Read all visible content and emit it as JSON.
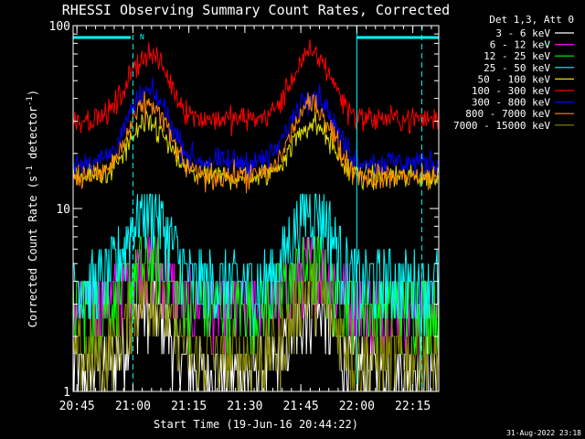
{
  "chart_data": {
    "type": "line",
    "title": "RHESSI Observing Summary Count Rates, Corrected",
    "xlabel": "Start Time (19-Jun-16 20:44:22)",
    "ylabel_main": "Corrected Count Rate (s",
    "ylabel_sup1": "-1",
    "ylabel_mid": " detector",
    "ylabel_sup2": "-1",
    "ylabel_end": ")",
    "yscale": "log",
    "ylim": [
      1,
      100
    ],
    "y_ticks": [
      {
        "value": 1,
        "label": "1"
      },
      {
        "value": 10,
        "label": "10"
      },
      {
        "value": 100,
        "label": "100"
      }
    ],
    "xlim_minutes": [
      20.733,
      22.366
    ],
    "x_ticks": [
      {
        "value": 20.75,
        "label": "20:45"
      },
      {
        "value": 21.0,
        "label": "21:00"
      },
      {
        "value": 21.25,
        "label": "21:15"
      },
      {
        "value": 21.5,
        "label": "21:30"
      },
      {
        "value": 21.75,
        "label": "21:45"
      },
      {
        "value": 22.0,
        "label": "22:00"
      },
      {
        "value": 22.25,
        "label": "22:15"
      }
    ],
    "legend_title": "Det 1,3, Att 0",
    "legend_position": "outside-right-top",
    "series": [
      {
        "name": "3 - 6 keV",
        "color": "#ffffff",
        "base": 1.3,
        "peak": 3.0,
        "noise": "quantized"
      },
      {
        "name": "6 - 12 keV",
        "color": "#ff00ff",
        "base": 3.0,
        "peak": 5.0,
        "noise": "quantized"
      },
      {
        "name": "12 - 25 keV",
        "color": "#00ff00",
        "base": 3.0,
        "peak": 5.0,
        "noise": "quantized"
      },
      {
        "name": "25 - 50 keV",
        "color": "#00ffff",
        "base": 4.0,
        "peak": 10.5,
        "noise": "quantized"
      },
      {
        "name": "50 - 100 keV",
        "color": "#dddd00",
        "base": 15.0,
        "peak": 29.0,
        "noise": "gaussian"
      },
      {
        "name": "100 - 300 keV",
        "color": "#ff0000",
        "base": 31.0,
        "peak": 70.0,
        "noise": "gaussian"
      },
      {
        "name": "300 - 800 keV",
        "color": "#0000ff",
        "base": 18.0,
        "peak": 43.0,
        "noise": "gaussian"
      },
      {
        "name": "800 - 7000 keV",
        "color": "#ff8800",
        "base": 15.0,
        "peak": 37.0,
        "noise": "gaussian"
      },
      {
        "name": "7000 - 15000 keV",
        "color": "#888800",
        "base": 1.6,
        "peak": 3.5,
        "noise": "quantized"
      }
    ],
    "peaks_hours": [
      21.07,
      21.8
    ],
    "markers": {
      "night_bars": [
        {
          "x0": 20.733,
          "x1": 20.99,
          "label": ""
        },
        {
          "x0": 22.0,
          "x1": 22.366,
          "label": ""
        }
      ],
      "flag_letter": "N",
      "vertical_lines_dashed": [
        21.0,
        22.29
      ],
      "vertical_lines_solid": [
        20.733,
        22.0
      ]
    }
  },
  "footer": {
    "timestamp": "31-Aug-2022 23:18"
  }
}
